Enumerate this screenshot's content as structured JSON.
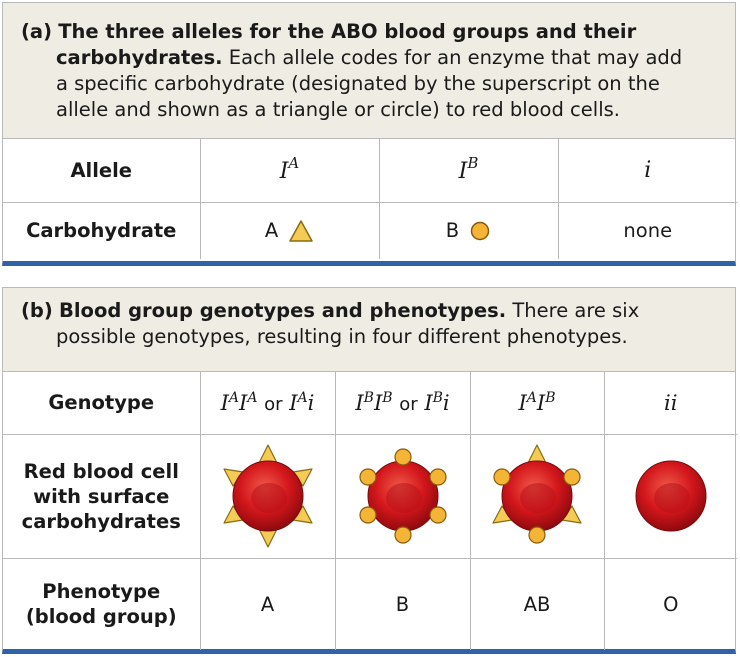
{
  "panel_a": {
    "label": "(a)",
    "title": "The three alleles for the ABO blood groups and their carbohydrates.",
    "title_line1": "The three alleles for the ABO blood groups and their",
    "title_line2": "carbohydrates.",
    "desc_line2": " Each allele codes for an enzyme that may add",
    "desc_line3": "a specific carbohydrate (designated by the superscript on the",
    "desc_line4": "allele and shown as a triangle or circle) to red blood cells.",
    "row_allele": "Allele",
    "row_carbohydrate": "Carbohydrate",
    "alleles": [
      {
        "base": "I",
        "sup": "A"
      },
      {
        "base": "I",
        "sup": "B"
      },
      {
        "base": "i",
        "sup": ""
      }
    ],
    "carbohydrates": [
      {
        "text": "A",
        "icon": "triangle-icon"
      },
      {
        "text": "B",
        "icon": "circle-icon"
      },
      {
        "text": "none",
        "icon": ""
      }
    ]
  },
  "panel_b": {
    "label": "(b)",
    "title": "Blood group genotypes and phenotypes.",
    "desc_line1": " There are six",
    "desc_line2": "possible genotypes, resulting in four different phenotypes.",
    "row_genotype": "Genotype",
    "row_cell_line1": "Red blood cell",
    "row_cell_line2": "with surface",
    "row_cell_line3": "carbohydrates",
    "row_phenotype_line1": "Phenotype",
    "row_phenotype_line2": "(blood group)",
    "or_word": "or",
    "genotype_vars": {
      "IA": "I",
      "IB": "I",
      "i": "i",
      "supA": "A",
      "supB": "B"
    },
    "cells": [
      {
        "icon": "red-blood-cell-with-triangles-icon",
        "carbs": "A"
      },
      {
        "icon": "red-blood-cell-with-circles-icon",
        "carbs": "B"
      },
      {
        "icon": "red-blood-cell-with-triangles-and-circles-icon",
        "carbs": "AB"
      },
      {
        "icon": "red-blood-cell-plain-icon",
        "carbs": "none"
      }
    ],
    "phenotypes": [
      "A",
      "B",
      "AB",
      "O"
    ]
  },
  "colors": {
    "caption_bg": "#efece3",
    "accent_border": "#2f63a8",
    "cell_red": "#d4171c",
    "triangle_fill": "#f4cc55",
    "circle_fill": "#f4b436"
  }
}
